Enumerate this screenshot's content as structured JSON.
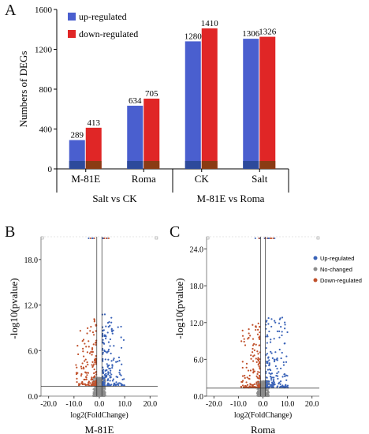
{
  "panels": {
    "a": "A",
    "b": "B",
    "c": "C"
  },
  "chart_data": [
    {
      "type": "bar",
      "ylabel": "Numbers of DEGs",
      "ylim": [
        0,
        1600
      ],
      "yticks": [
        "0",
        "400",
        "800",
        "1200",
        "1600"
      ],
      "categories": [
        "M-81E",
        "Roma",
        "CK",
        "Salt"
      ],
      "group_labels": [
        {
          "label": "Salt vs CK",
          "categories": [
            "M-81E",
            "Roma"
          ]
        },
        {
          "label": "M-81E vs Roma",
          "categories": [
            "CK",
            "Salt"
          ]
        }
      ],
      "legend_position": "top-left",
      "series": [
        {
          "name": "up-regulated",
          "color": "#4a5fcf",
          "values": [
            289,
            634,
            1280,
            1306
          ]
        },
        {
          "name": "down-regulated",
          "color": "#e02626",
          "values": [
            413,
            705,
            1410,
            1326
          ]
        }
      ],
      "data_labels": {
        "up-regulated": [
          "289",
          "634",
          "1280",
          "1306"
        ],
        "down-regulated": [
          "413",
          "705",
          "1410",
          "1326"
        ]
      }
    },
    {
      "type": "scatter",
      "title": "M-81E",
      "xlabel": "log2(FoldChange)",
      "ylabel": "-log10(pvalue)",
      "xlim": [
        -23,
        23
      ],
      "ylim": [
        0,
        21
      ],
      "xticks": [
        "-20.0",
        "-10.0",
        "0.0",
        "10.0",
        "20.0"
      ],
      "yticks": [
        "0.0",
        "6.0",
        "12.0",
        "18.0"
      ],
      "threshold_lines": {
        "x": [
          -1,
          1
        ],
        "y": 1.3
      },
      "series": [
        {
          "name": "Up-regulated",
          "color": "#3a63b8"
        },
        {
          "name": "No-changed",
          "color": "#8c8c8c"
        },
        {
          "name": "Down-regulated",
          "color": "#c0502a"
        }
      ]
    },
    {
      "type": "scatter",
      "title": "Roma",
      "xlabel": "log2(FoldChange)",
      "ylabel": "-log10(pvalue)",
      "xlim": [
        -23,
        23
      ],
      "ylim": [
        0,
        26
      ],
      "xticks": [
        "-20.0",
        "-10.0",
        "0.0",
        "10.0",
        "20.0"
      ],
      "yticks": [
        "0.0",
        "6.0",
        "12.0",
        "18.0",
        "24.0"
      ],
      "threshold_lines": {
        "x": [
          -1,
          1
        ],
        "y": 1.3
      },
      "legend_position": "right",
      "series": [
        {
          "name": "Up-regulated",
          "color": "#3a63b8"
        },
        {
          "name": "No-changed",
          "color": "#8c8c8c"
        },
        {
          "name": "Down-regulated",
          "color": "#c0502a"
        }
      ]
    }
  ]
}
